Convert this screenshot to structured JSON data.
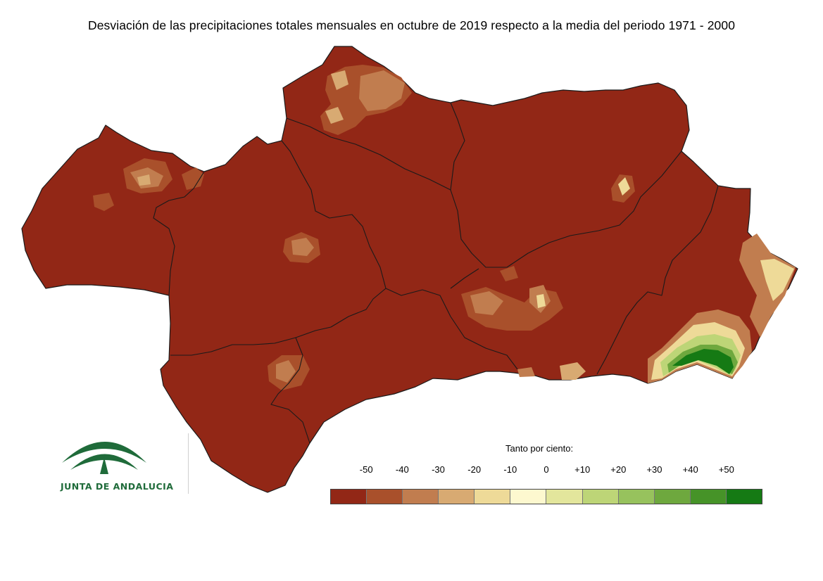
{
  "title": "Desviación de las precipitaciones totales mensuales en octubre de 2019 respecto a la media del periodo 1971 - 2000",
  "logo": {
    "text": "JUNTA DE ANDALUCIA",
    "color": "#1f6b3a"
  },
  "legend": {
    "title": "Tanto por ciento:",
    "ticks": [
      "-50",
      "-40",
      "-30",
      "-20",
      "-10",
      "0",
      "+10",
      "+20",
      "+30",
      "+40",
      "+50"
    ],
    "swatches": [
      "#922716",
      "#a9502b",
      "#c17d4f",
      "#d8aa72",
      "#eeda98",
      "#fdf8cf",
      "#e3e69c",
      "#bdd577",
      "#97c25d",
      "#6ea83e",
      "#469328",
      "#157a14"
    ]
  },
  "map": {
    "region": "Andalucía",
    "base_color": "#922716",
    "border_color": "#1a1a1a"
  }
}
